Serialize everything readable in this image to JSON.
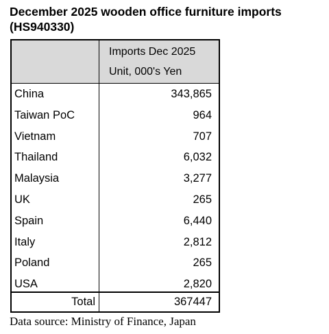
{
  "title": "December 2025 wooden office furniture imports (HS940330)",
  "table": {
    "header": [
      "Imports Dec 2025",
      "Unit, 000's Yen"
    ],
    "rows": [
      [
        "China",
        "343,865"
      ],
      [
        "Taiwan PoC",
        "964"
      ],
      [
        "Vietnam",
        "707"
      ],
      [
        "Thailand",
        "6,032"
      ],
      [
        "Malaysia",
        "3,277"
      ],
      [
        "UK",
        "265"
      ],
      [
        "Spain",
        "6,440"
      ],
      [
        "Italy",
        "2,812"
      ],
      [
        "Poland",
        "265"
      ],
      [
        "USA",
        "2,820"
      ]
    ],
    "total": [
      "Total",
      "367447"
    ]
  },
  "source": "Data source: Ministry of Finance, Japan"
}
